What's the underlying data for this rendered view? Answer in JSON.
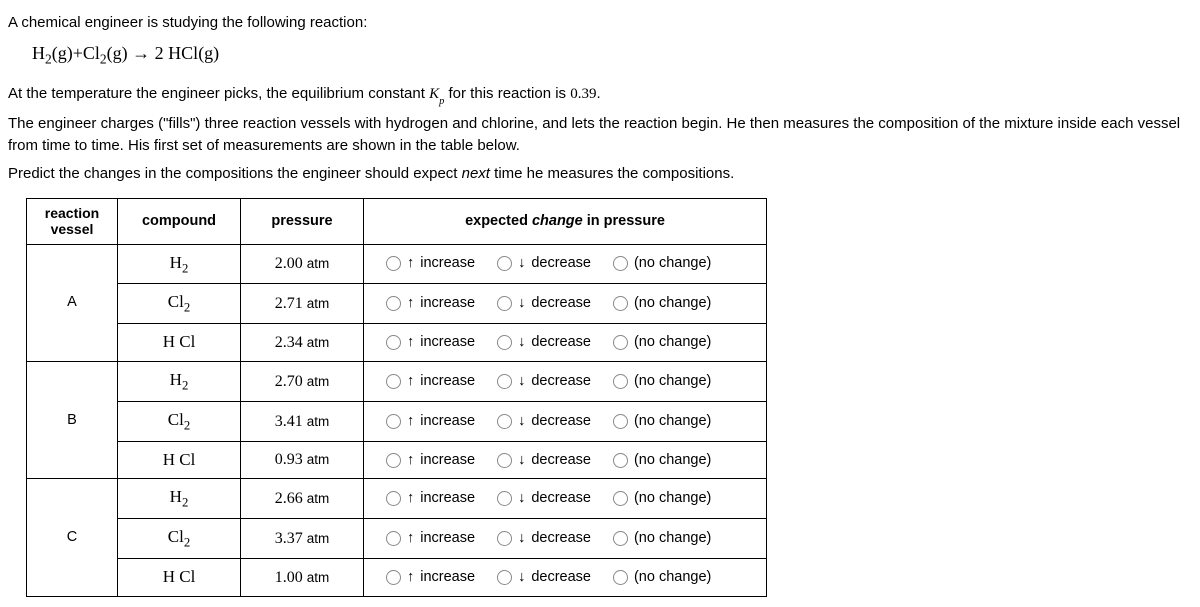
{
  "intro": {
    "line1": "A chemical engineer is studying the following reaction:",
    "equation_lhs_a": "H",
    "equation_lhs_a_sub": "2",
    "equation_lhs_a_state": "(g)",
    "plus": "+",
    "equation_lhs_b": "Cl",
    "equation_lhs_b_sub": "2",
    "equation_lhs_b_state": "(g)",
    "arrow": "→",
    "equation_rhs_coef": "2",
    "equation_rhs": "HCl",
    "equation_rhs_state": "(g)",
    "line2_a": "At the temperature the engineer picks, the equilibrium constant ",
    "line2_k": "K",
    "line2_k_sub": "p",
    "line2_b": " for this reaction is ",
    "kp_value": "0.39",
    "line2_c": ".",
    "line3": "The engineer charges (\"fills\") three reaction vessels with hydrogen and chlorine, and lets the reaction begin. He then measures the composition of the mixture inside each vessel from time to time. His first set of measurements are shown in the table below.",
    "line4_a": "Predict the changes in the compositions the engineer should expect ",
    "line4_em": "next",
    "line4_b": " time he measures the compositions."
  },
  "headers": {
    "vessel_a": "reaction",
    "vessel_b": "vessel",
    "compound": "compound",
    "pressure": "pressure",
    "change_a": "expected ",
    "change_em": "change",
    "change_b": " in pressure"
  },
  "choices": {
    "increase": "increase",
    "decrease": "decrease",
    "nochange": "(no change)",
    "up": "↑",
    "down": "↓"
  },
  "vessels": [
    {
      "label": "A",
      "rows": [
        {
          "compound": "H",
          "sub": "2",
          "pressure": "2.00",
          "unit": "atm"
        },
        {
          "compound": "Cl",
          "sub": "2",
          "pressure": "2.71",
          "unit": "atm"
        },
        {
          "compound": "HCl",
          "sub": "",
          "pressure": "2.34",
          "unit": "atm"
        }
      ]
    },
    {
      "label": "B",
      "rows": [
        {
          "compound": "H",
          "sub": "2",
          "pressure": "2.70",
          "unit": "atm"
        },
        {
          "compound": "Cl",
          "sub": "2",
          "pressure": "3.41",
          "unit": "atm"
        },
        {
          "compound": "HCl",
          "sub": "",
          "pressure": "0.93",
          "unit": "atm"
        }
      ]
    },
    {
      "label": "C",
      "rows": [
        {
          "compound": "H",
          "sub": "2",
          "pressure": "2.66",
          "unit": "atm"
        },
        {
          "compound": "Cl",
          "sub": "2",
          "pressure": "3.37",
          "unit": "atm"
        },
        {
          "compound": "HCl",
          "sub": "",
          "pressure": "1.00",
          "unit": "atm"
        }
      ]
    }
  ]
}
